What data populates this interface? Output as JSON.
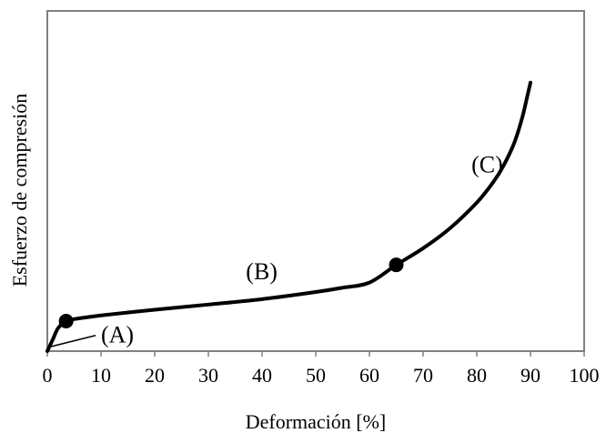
{
  "chart_data": {
    "type": "line",
    "title": "",
    "xlabel": "Deformación [%]",
    "ylabel": "Esfuerzo de compresión",
    "xlim": [
      0,
      100
    ],
    "x_ticks": [
      0,
      10,
      20,
      30,
      40,
      50,
      60,
      70,
      80,
      90,
      100
    ],
    "y_ticks": [],
    "ylim": [
      0,
      1
    ],
    "grid": false,
    "legend": "none",
    "series": [
      {
        "points": [
          {
            "x": 0,
            "y": 0
          },
          {
            "x": 1,
            "y": 0.04
          },
          {
            "x": 2,
            "y": 0.08
          },
          {
            "x": 3.5,
            "y": 0.105
          },
          {
            "x": 5,
            "y": 0.112
          },
          {
            "x": 10,
            "y": 0.125
          },
          {
            "x": 20,
            "y": 0.145
          },
          {
            "x": 30,
            "y": 0.163
          },
          {
            "x": 40,
            "y": 0.182
          },
          {
            "x": 50,
            "y": 0.207
          },
          {
            "x": 55,
            "y": 0.222
          },
          {
            "x": 60,
            "y": 0.24
          },
          {
            "x": 65,
            "y": 0.302
          },
          {
            "x": 70,
            "y": 0.36
          },
          {
            "x": 75,
            "y": 0.43
          },
          {
            "x": 80,
            "y": 0.52
          },
          {
            "x": 83,
            "y": 0.59
          },
          {
            "x": 85,
            "y": 0.65
          },
          {
            "x": 87,
            "y": 0.73
          },
          {
            "x": 88.5,
            "y": 0.82
          },
          {
            "x": 89.5,
            "y": 0.9
          },
          {
            "x": 90,
            "y": 0.94
          }
        ]
      }
    ],
    "markers": [
      {
        "x": 3.5,
        "y": 0.105
      },
      {
        "x": 65,
        "y": 0.302
      }
    ],
    "annotations": [
      {
        "text": "(A)",
        "x": 10,
        "y": 0.05
      },
      {
        "text": "(B)",
        "x": 37,
        "y": 0.27
      },
      {
        "text": "(C)",
        "x": 79,
        "y": 0.645
      }
    ],
    "leader_line": {
      "from": {
        "x": 0.5,
        "y": 0.015
      },
      "to": {
        "x": 9,
        "y": 0.055
      }
    }
  }
}
